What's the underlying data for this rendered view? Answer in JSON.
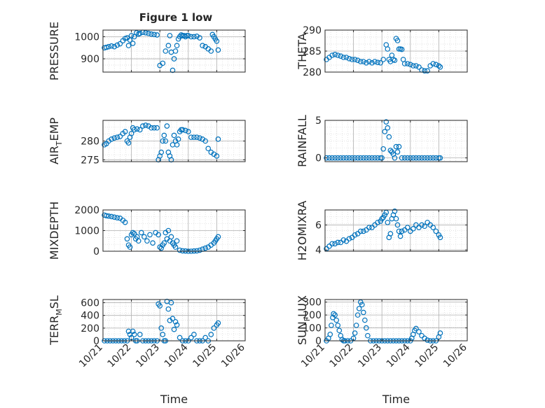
{
  "figure_title": "Figure 1 low",
  "colors": {
    "marker": "#0072BD",
    "axis": "#262626",
    "grid": "#b0b0b0",
    "background": "#ffffff"
  },
  "chart_data": [
    {
      "type": "scatter",
      "ylabel": "PRESSURE",
      "ylabel_sub": "",
      "xlim": [
        0,
        5
      ],
      "ylim": [
        840,
        1030
      ],
      "yticks": [
        900,
        1000
      ],
      "xtick_labels": [
        "10/21",
        "10/22",
        "10/23",
        "10/24",
        "10/25",
        "10/26"
      ],
      "xlabel": "",
      "grid": true,
      "x": [
        0.05,
        0.12,
        0.2,
        0.3,
        0.4,
        0.5,
        0.6,
        0.7,
        0.78,
        0.85,
        0.9,
        0.95,
        1.0,
        1.05,
        1.1,
        1.18,
        1.25,
        1.3,
        1.4,
        1.5,
        1.6,
        1.7,
        1.8,
        1.9,
        2.0,
        2.1,
        2.2,
        2.3,
        2.35,
        2.4,
        2.45,
        2.5,
        2.55,
        2.6,
        2.65,
        2.7,
        2.75,
        2.8,
        2.85,
        2.9,
        2.95,
        3.0,
        3.1,
        3.2,
        3.3,
        3.4,
        3.5,
        3.6,
        3.7,
        3.8,
        3.85,
        3.9,
        3.95,
        4.0,
        4.05
      ],
      "y": [
        950,
        952,
        955,
        958,
        955,
        962,
        968,
        982,
        992,
        995,
        960,
        985,
        1005,
        970,
        1000,
        1018,
        1012,
        1015,
        1020,
        1018,
        1015,
        1012,
        1010,
        1008,
        870,
        880,
        935,
        960,
        1005,
        930,
        848,
        900,
        935,
        960,
        990,
        1000,
        1008,
        1005,
        1005,
        1000,
        1005,
        1005,
        1000,
        1000,
        1002,
        995,
        960,
        955,
        945,
        935,
        1010,
        1000,
        990,
        980,
        940
      ]
    },
    {
      "type": "scatter",
      "ylabel": "THETA",
      "ylabel_sub": "",
      "xlim": [
        0,
        5
      ],
      "ylim": [
        280,
        290
      ],
      "yticks": [
        280,
        285,
        290
      ],
      "xtick_labels": [
        "10/21",
        "10/22",
        "10/23",
        "10/24",
        "10/25",
        "10/26"
      ],
      "xlabel": "",
      "grid": true,
      "x": [
        0.05,
        0.15,
        0.25,
        0.35,
        0.45,
        0.55,
        0.65,
        0.75,
        0.85,
        0.95,
        1.05,
        1.15,
        1.25,
        1.35,
        1.45,
        1.55,
        1.65,
        1.75,
        1.85,
        1.95,
        2.05,
        2.15,
        2.2,
        2.25,
        2.3,
        2.35,
        2.4,
        2.45,
        2.5,
        2.55,
        2.6,
        2.65,
        2.7,
        2.75,
        2.8,
        2.9,
        3.0,
        3.1,
        3.2,
        3.3,
        3.4,
        3.5,
        3.6,
        3.7,
        3.8,
        3.9,
        4.0,
        4.05
      ],
      "y": [
        283,
        283.5,
        284,
        284.2,
        284,
        283.8,
        283.5,
        283.5,
        283.2,
        283,
        283,
        282.8,
        282.5,
        282.5,
        282.2,
        282.5,
        282.2,
        282.5,
        282.3,
        282.2,
        283,
        286.5,
        285.5,
        283,
        282.5,
        284,
        283,
        282.8,
        288,
        287.5,
        285.5,
        285.5,
        285.4,
        283,
        282,
        282,
        281.8,
        281.5,
        281.5,
        281.2,
        280.5,
        280.3,
        280.3,
        281.5,
        282,
        281.8,
        281.5,
        281.2
      ]
    },
    {
      "type": "scatter",
      "ylabel": "AIR",
      "ylabel_sub": "T",
      "ylabel_rest": "EMP",
      "xlim": [
        0,
        5
      ],
      "ylim": [
        274.5,
        285.5
      ],
      "yticks": [
        275,
        280
      ],
      "xtick_labels": [
        "10/21",
        "10/22",
        "10/23",
        "10/24",
        "10/25",
        "10/26"
      ],
      "xlabel": "",
      "grid": true,
      "x": [
        0.05,
        0.12,
        0.2,
        0.3,
        0.4,
        0.5,
        0.6,
        0.7,
        0.78,
        0.85,
        0.9,
        0.95,
        1.0,
        1.05,
        1.1,
        1.2,
        1.3,
        1.4,
        1.5,
        1.6,
        1.7,
        1.8,
        1.9,
        1.95,
        2.0,
        2.05,
        2.1,
        2.15,
        2.2,
        2.25,
        2.3,
        2.35,
        2.4,
        2.45,
        2.5,
        2.55,
        2.6,
        2.65,
        2.7,
        2.75,
        2.8,
        2.9,
        3.0,
        3.1,
        3.2,
        3.3,
        3.4,
        3.5,
        3.6,
        3.7,
        3.8,
        3.9,
        4.0,
        4.05
      ],
      "y": [
        279,
        279.3,
        280,
        280.5,
        280.8,
        281,
        281.2,
        282,
        282.5,
        280,
        279.5,
        281,
        282,
        283.5,
        283,
        283.2,
        283,
        284,
        284.2,
        284,
        283.5,
        283.5,
        283.5,
        275,
        276,
        277,
        280,
        281.5,
        280,
        284,
        277,
        276,
        275,
        279,
        281.5,
        280,
        279,
        280.5,
        282.5,
        283,
        283,
        282.8,
        282.5,
        281,
        281,
        281,
        280.8,
        280.5,
        280,
        278,
        277,
        276.5,
        276,
        280.5
      ]
    },
    {
      "type": "scatter",
      "ylabel": "RAINFALL",
      "ylabel_sub": "",
      "xlim": [
        0,
        5
      ],
      "ylim": [
        -0.5,
        5
      ],
      "yticks": [
        0,
        5
      ],
      "xtick_labels": [
        "10/21",
        "10/22",
        "10/23",
        "10/24",
        "10/25",
        "10/26"
      ],
      "xlabel": "",
      "grid": true,
      "x": [
        0.05,
        0.15,
        0.25,
        0.35,
        0.45,
        0.55,
        0.65,
        0.75,
        0.85,
        0.95,
        1.05,
        1.15,
        1.25,
        1.35,
        1.45,
        1.55,
        1.65,
        1.75,
        1.85,
        1.95,
        2.0,
        2.05,
        2.1,
        2.15,
        2.2,
        2.25,
        2.3,
        2.35,
        2.4,
        2.45,
        2.5,
        2.55,
        2.6,
        2.7,
        2.8,
        2.9,
        3.0,
        3.1,
        3.2,
        3.3,
        3.4,
        3.5,
        3.6,
        3.7,
        3.8,
        3.9,
        4.0,
        4.05
      ],
      "y": [
        0,
        0,
        0,
        0,
        0,
        0,
        0,
        0,
        0,
        0,
        0,
        0,
        0,
        0,
        0,
        0,
        0,
        0,
        0,
        0,
        0,
        1.2,
        3.5,
        4.8,
        4,
        2.8,
        1,
        0.8,
        0.5,
        0,
        1.5,
        0.8,
        1.5,
        0,
        0,
        0,
        0,
        0,
        0,
        0,
        0,
        0,
        0,
        0,
        0,
        0,
        0,
        0
      ]
    },
    {
      "type": "scatter",
      "ylabel": "MIXDEPTH",
      "ylabel_sub": "",
      "xlim": [
        0,
        5
      ],
      "ylim": [
        0,
        2000
      ],
      "yticks": [
        0,
        1000,
        2000
      ],
      "xtick_labels": [
        "10/21",
        "10/22",
        "10/23",
        "10/24",
        "10/25",
        "10/26"
      ],
      "xlabel": "",
      "grid": true,
      "x": [
        0.05,
        0.12,
        0.2,
        0.3,
        0.4,
        0.5,
        0.6,
        0.7,
        0.78,
        0.85,
        0.9,
        0.95,
        1.0,
        1.05,
        1.1,
        1.15,
        1.2,
        1.25,
        1.35,
        1.45,
        1.55,
        1.65,
        1.75,
        1.85,
        1.95,
        2.0,
        2.05,
        2.1,
        2.15,
        2.2,
        2.25,
        2.3,
        2.35,
        2.4,
        2.45,
        2.5,
        2.55,
        2.6,
        2.7,
        2.8,
        2.9,
        3.0,
        3.1,
        3.2,
        3.3,
        3.4,
        3.5,
        3.6,
        3.7,
        3.8,
        3.9,
        3.95,
        4.0,
        4.05
      ],
      "y": [
        1750,
        1720,
        1700,
        1680,
        1650,
        1620,
        1600,
        1500,
        1400,
        600,
        300,
        200,
        800,
        900,
        850,
        600,
        700,
        500,
        900,
        700,
        500,
        800,
        400,
        900,
        800,
        200,
        150,
        300,
        400,
        900,
        600,
        1000,
        500,
        700,
        400,
        300,
        200,
        500,
        50,
        20,
        10,
        0,
        0,
        10,
        20,
        50,
        100,
        150,
        200,
        300,
        400,
        500,
        600,
        700
      ]
    },
    {
      "type": "scatter",
      "ylabel": "H2OMIXRA",
      "ylabel_sub": "",
      "xlim": [
        0,
        5
      ],
      "ylim": [
        3.9,
        7.2
      ],
      "yticks": [
        4,
        6
      ],
      "xtick_labels": [
        "10/21",
        "10/22",
        "10/23",
        "10/24",
        "10/25",
        "10/26"
      ],
      "xlabel": "",
      "grid": true,
      "x": [
        0.05,
        0.15,
        0.25,
        0.35,
        0.45,
        0.55,
        0.65,
        0.75,
        0.85,
        0.95,
        1.05,
        1.15,
        1.25,
        1.35,
        1.45,
        1.55,
        1.65,
        1.75,
        1.85,
        1.95,
        2.0,
        2.05,
        2.1,
        2.15,
        2.2,
        2.25,
        2.3,
        2.35,
        2.4,
        2.45,
        2.5,
        2.55,
        2.6,
        2.65,
        2.7,
        2.8,
        2.9,
        3.0,
        3.1,
        3.2,
        3.3,
        3.4,
        3.5,
        3.6,
        3.7,
        3.8,
        3.9,
        4.0,
        4.05
      ],
      "y": [
        4.1,
        4.3,
        4.5,
        4.5,
        4.6,
        4.6,
        4.8,
        4.7,
        4.9,
        5.0,
        5.2,
        5.3,
        5.5,
        5.5,
        5.6,
        5.8,
        5.8,
        6.0,
        6.2,
        6.3,
        6.5,
        6.6,
        6.8,
        7.0,
        6.2,
        5.0,
        5.3,
        6.5,
        6.8,
        7.1,
        6.5,
        6.0,
        5.5,
        5.1,
        5.5,
        5.6,
        5.8,
        5.5,
        5.7,
        6.0,
        5.8,
        6.0,
        5.9,
        6.2,
        6.0,
        5.8,
        5.5,
        5.2,
        5.0
      ]
    },
    {
      "type": "scatter",
      "ylabel": "TERR",
      "ylabel_sub": "M",
      "ylabel_rest": "SL",
      "xlim": [
        0,
        5
      ],
      "ylim": [
        0,
        650
      ],
      "yticks": [
        0,
        200,
        400,
        600
      ],
      "xtick_labels": [
        "10/21",
        "10/22",
        "10/23",
        "10/24",
        "10/25",
        "10/26"
      ],
      "xlabel": "Time",
      "grid": true,
      "x": [
        0.05,
        0.15,
        0.25,
        0.35,
        0.45,
        0.55,
        0.65,
        0.75,
        0.85,
        0.9,
        0.95,
        1.0,
        1.05,
        1.1,
        1.15,
        1.2,
        1.3,
        1.4,
        1.5,
        1.6,
        1.7,
        1.8,
        1.9,
        1.95,
        2.0,
        2.05,
        2.1,
        2.15,
        2.2,
        2.25,
        2.3,
        2.35,
        2.4,
        2.45,
        2.5,
        2.55,
        2.6,
        2.7,
        2.8,
        2.9,
        3.0,
        3.1,
        3.2,
        3.3,
        3.4,
        3.5,
        3.6,
        3.7,
        3.8,
        3.9,
        4.0,
        4.05
      ],
      "y": [
        0,
        0,
        0,
        0,
        0,
        0,
        0,
        0,
        0,
        150,
        100,
        50,
        150,
        100,
        0,
        0,
        100,
        0,
        0,
        0,
        0,
        0,
        0,
        580,
        550,
        200,
        100,
        0,
        0,
        620,
        500,
        320,
        600,
        350,
        180,
        300,
        250,
        50,
        0,
        0,
        0,
        50,
        100,
        0,
        0,
        0,
        50,
        0,
        100,
        200,
        250,
        280
      ]
    },
    {
      "type": "scatter",
      "ylabel": "SUN",
      "ylabel_sub": "F",
      "ylabel_rest": "LUX",
      "xlim": [
        0,
        5
      ],
      "ylim": [
        0,
        320
      ],
      "yticks": [
        0,
        100,
        200,
        300
      ],
      "xtick_labels": [
        "10/21",
        "10/22",
        "10/23",
        "10/24",
        "10/25",
        "10/26"
      ],
      "xlabel": "Time",
      "grid": true,
      "x": [
        0.05,
        0.12,
        0.18,
        0.22,
        0.27,
        0.3,
        0.35,
        0.4,
        0.45,
        0.5,
        0.55,
        0.6,
        0.65,
        0.7,
        0.8,
        0.9,
        1.0,
        1.05,
        1.1,
        1.15,
        1.2,
        1.25,
        1.3,
        1.35,
        1.4,
        1.45,
        1.5,
        1.6,
        1.7,
        1.8,
        1.9,
        2.0,
        2.1,
        2.2,
        2.3,
        2.4,
        2.5,
        2.6,
        2.7,
        2.8,
        2.9,
        3.0,
        3.05,
        3.1,
        3.15,
        3.2,
        3.3,
        3.4,
        3.5,
        3.6,
        3.7,
        3.8,
        3.9,
        4.0,
        4.05
      ],
      "y": [
        0,
        20,
        50,
        120,
        180,
        210,
        200,
        160,
        120,
        80,
        40,
        10,
        0,
        0,
        0,
        0,
        20,
        60,
        120,
        200,
        250,
        300,
        280,
        220,
        160,
        100,
        40,
        0,
        0,
        0,
        0,
        0,
        0,
        0,
        0,
        0,
        0,
        0,
        0,
        0,
        0,
        0,
        20,
        50,
        80,
        95,
        70,
        40,
        20,
        5,
        0,
        0,
        0,
        30,
        60
      ]
    }
  ]
}
